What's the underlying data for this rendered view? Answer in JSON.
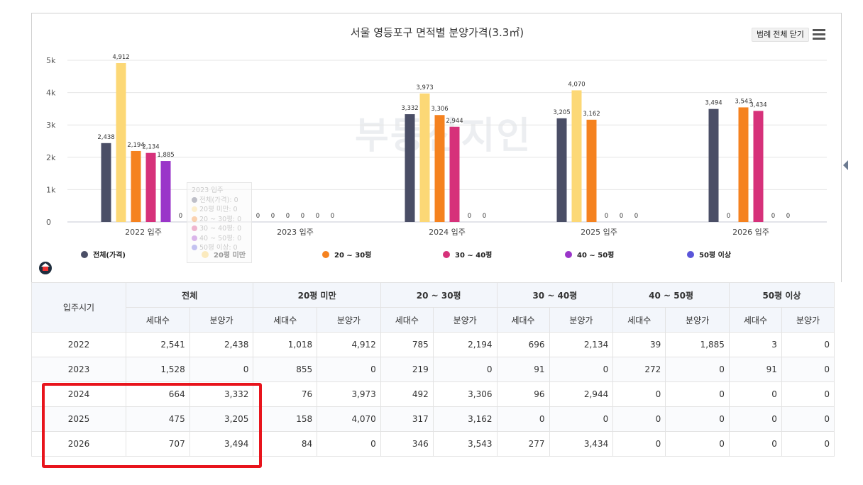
{
  "chart_data": {
    "type": "bar",
    "title": "서울 영등포구 면적별 분양가격(3.3㎡)",
    "categories": [
      "2022 입주",
      "2023 입주",
      "2024 입주",
      "2025 입주",
      "2026 입주"
    ],
    "ylim": [
      0,
      5000
    ],
    "yticks": [
      "0",
      "1k",
      "2k",
      "3k",
      "4k",
      "5k"
    ],
    "grid": true,
    "legend": "bottom",
    "series": [
      {
        "name": "전체(가격)",
        "color": "#4a4e66",
        "values": [
          2438,
          0,
          3332,
          3205,
          3494
        ],
        "labels": [
          "2,438",
          "0",
          "3,332",
          "3,205",
          "3,494"
        ]
      },
      {
        "name": "20평 미만",
        "color": "#fcd876",
        "values": [
          4912,
          0,
          3973,
          4070,
          0
        ],
        "labels": [
          "4,912",
          "0",
          "3,973",
          "4,070",
          "0"
        ]
      },
      {
        "name": "20 ~ 30평",
        "color": "#f5821f",
        "values": [
          2194,
          0,
          3306,
          3162,
          3543
        ],
        "labels": [
          "2,194",
          "0",
          "3,306",
          "3,162",
          "3,543"
        ]
      },
      {
        "name": "30 ~ 40평",
        "color": "#d6317a",
        "values": [
          2134,
          0,
          2944,
          0,
          3434
        ],
        "labels": [
          "2,134",
          "0",
          "2,944",
          "0",
          "3,434"
        ]
      },
      {
        "name": "40 ~ 50평",
        "color": "#9a35c9",
        "values": [
          1885,
          0,
          0,
          0,
          0
        ],
        "labels": [
          "1,885",
          "0",
          "0",
          "0",
          "0"
        ]
      },
      {
        "name": "50평 이상",
        "color": "#5a55d9",
        "values": [
          0,
          0,
          0,
          0,
          0
        ],
        "labels": [
          "0",
          "0",
          "0",
          "0",
          "0"
        ]
      }
    ]
  },
  "ui": {
    "legend_close_label": "범례 전체 닫기",
    "watermark": "부동산지인"
  },
  "tooltip": {
    "title": "2023 입주",
    "rows": [
      "전체(가격): 0",
      "20평 미만: 0",
      "20 ~ 30평: 0",
      "30 ~ 40평: 0",
      "40 ~ 50평: 0",
      "50평 이상: 0"
    ]
  },
  "table": {
    "corner": "입주시기",
    "groups": [
      "전체",
      "20평 미만",
      "20 ~ 30평",
      "30 ~ 40평",
      "40 ~ 50평",
      "50평 이상"
    ],
    "sub": [
      "세대수",
      "분양가"
    ],
    "rows": [
      {
        "year": "2022",
        "cells": [
          "2,541",
          "2,438",
          "1,018",
          "4,912",
          "785",
          "2,194",
          "696",
          "2,134",
          "39",
          "1,885",
          "3",
          "0"
        ]
      },
      {
        "year": "2023",
        "cells": [
          "1,528",
          "0",
          "855",
          "0",
          "219",
          "0",
          "91",
          "0",
          "272",
          "0",
          "91",
          "0"
        ]
      },
      {
        "year": "2024",
        "cells": [
          "664",
          "3,332",
          "76",
          "3,973",
          "492",
          "3,306",
          "96",
          "2,944",
          "0",
          "0",
          "0",
          "0"
        ]
      },
      {
        "year": "2025",
        "cells": [
          "475",
          "3,205",
          "158",
          "4,070",
          "317",
          "3,162",
          "0",
          "0",
          "0",
          "0",
          "0",
          "0"
        ]
      },
      {
        "year": "2026",
        "cells": [
          "707",
          "3,494",
          "84",
          "0",
          "346",
          "3,543",
          "277",
          "3,434",
          "0",
          "0",
          "0",
          "0"
        ]
      }
    ]
  }
}
